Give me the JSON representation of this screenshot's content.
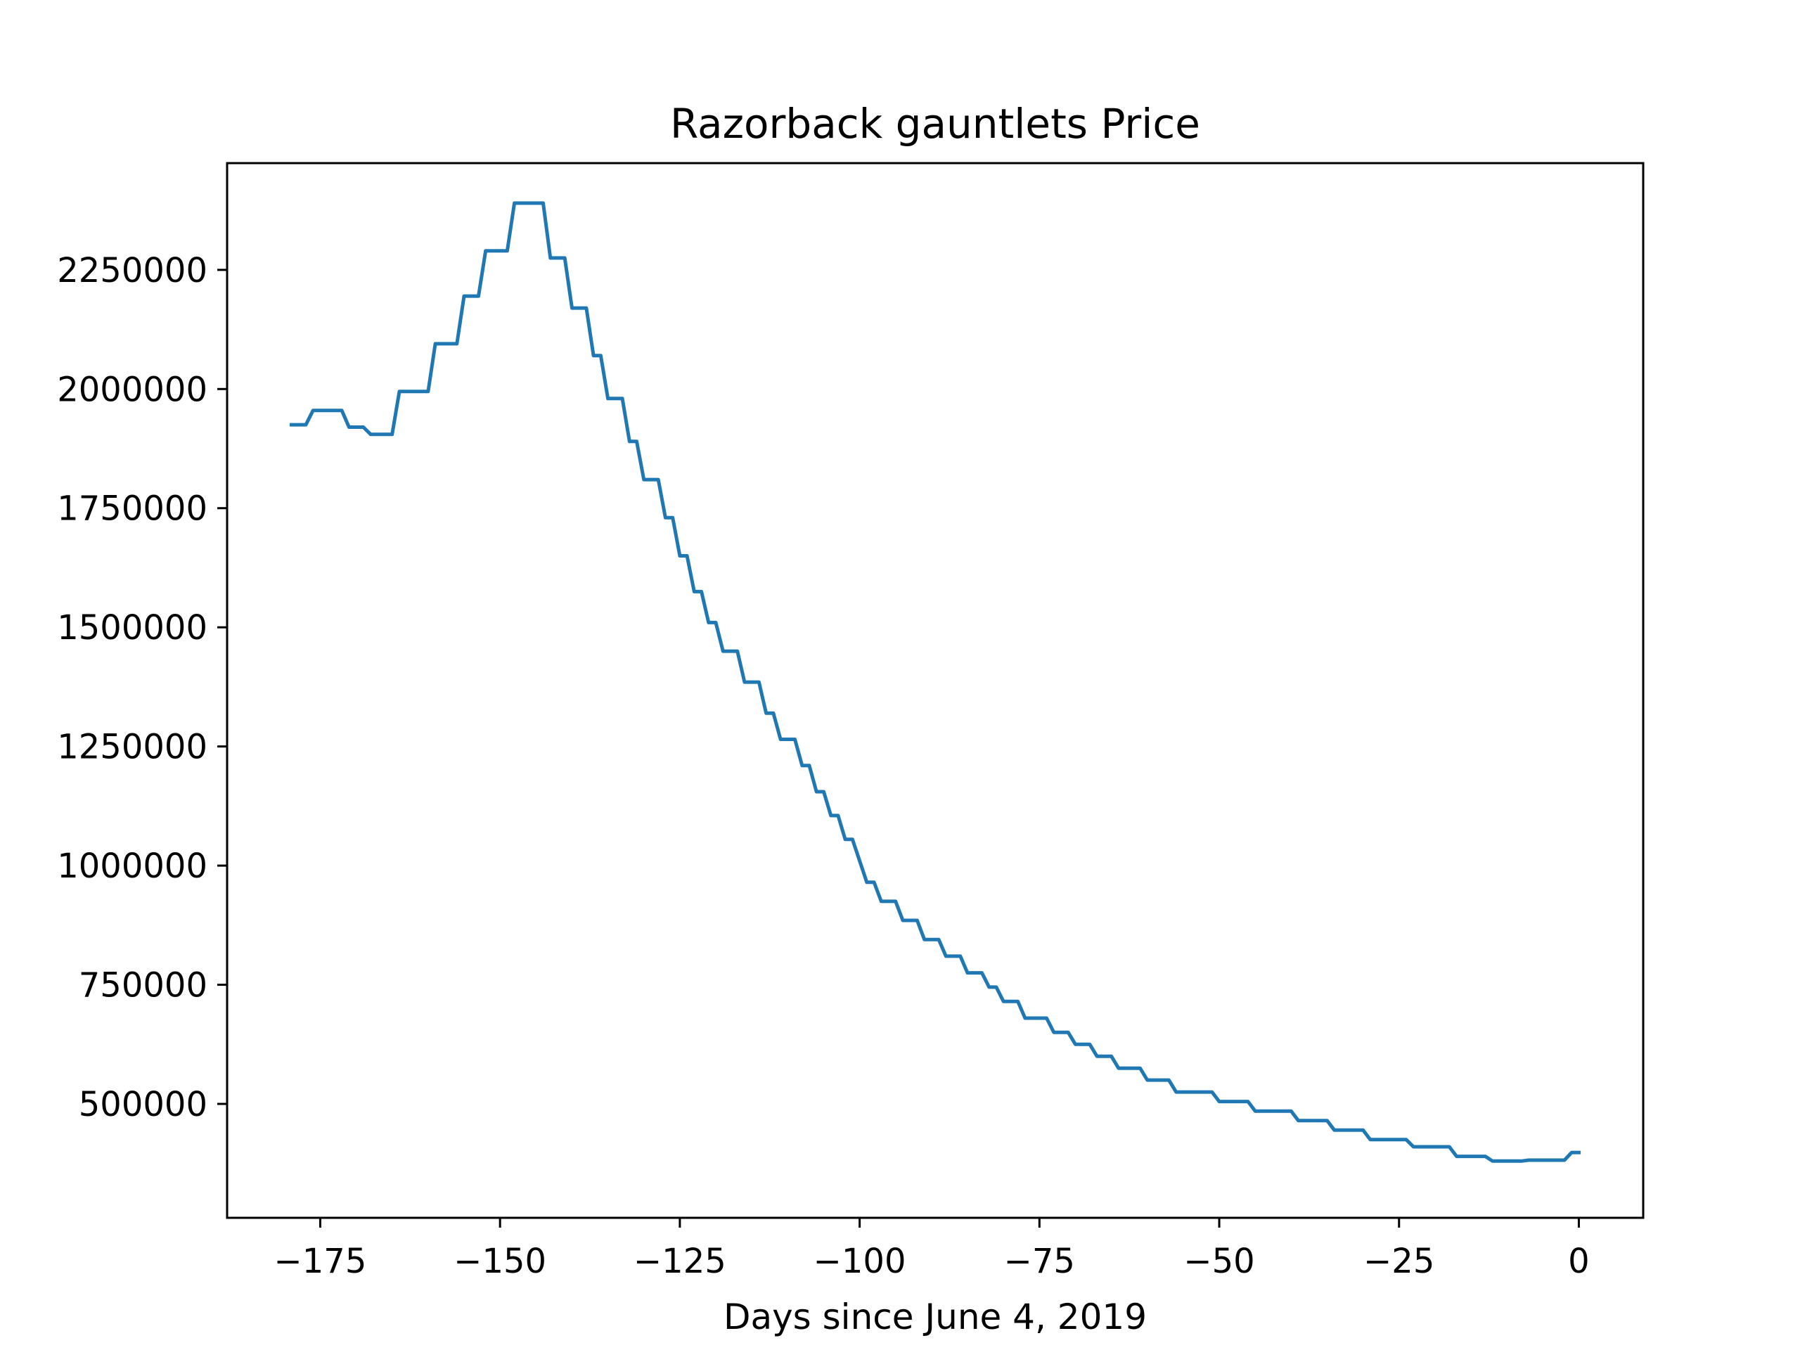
{
  "chart_data": {
    "type": "line",
    "title": "Razorback gauntlets Price",
    "xlabel": "Days since June 4, 2019",
    "ylabel": "",
    "xlim": [
      -187.95,
      8.95
    ],
    "ylim": [
      261000,
      2474000
    ],
    "xticks": [
      -175,
      -150,
      -125,
      -100,
      -75,
      -50,
      -25,
      0
    ],
    "xtick_labels": [
      "−175",
      "−150",
      "−125",
      "−100",
      "−75",
      "−50",
      "−25",
      "0"
    ],
    "yticks": [
      500000,
      750000,
      1000000,
      1250000,
      1500000,
      1750000,
      2000000,
      2250000
    ],
    "ytick_labels": [
      "500000",
      "750000",
      "1000000",
      "1250000",
      "1500000",
      "1750000",
      "2000000",
      "2250000"
    ],
    "grid": false,
    "colors": {
      "line": "#1f77b4",
      "axes": "#000000",
      "background": "#ffffff"
    },
    "series": [
      {
        "x": [
          -179,
          -177,
          -176,
          -175,
          -174,
          -173,
          -172,
          -171,
          -170,
          -169,
          -168,
          -167,
          -166,
          -165,
          -164,
          -163,
          -162,
          -161,
          -160,
          -159,
          -158,
          -157,
          -156,
          -155,
          -154,
          -153,
          -152,
          -151,
          -150,
          -149,
          -148,
          -147,
          -146,
          -145,
          -144,
          -143,
          -142,
          -141,
          -140,
          -139,
          -138,
          -137,
          -136,
          -135,
          -134,
          -133,
          -132,
          -131,
          -130,
          -129,
          -128,
          -127,
          -126,
          -125,
          -124,
          -123,
          -122,
          -121,
          -120,
          -119,
          -118,
          -117,
          -116,
          -115,
          -114,
          -113,
          -112,
          -111,
          -110,
          -109,
          -108,
          -107,
          -106,
          -105,
          -104,
          -103,
          -102,
          -101,
          -100,
          -99,
          -98,
          -97,
          -96,
          -95,
          -94,
          -93,
          -92,
          -91,
          -90,
          -89,
          -88,
          -87,
          -86,
          -85,
          -84,
          -83,
          -82,
          -81,
          -80,
          -79,
          -78,
          -77,
          -76,
          -75,
          -74,
          -73,
          -72,
          -71,
          -70,
          -69,
          -68,
          -67,
          -66,
          -65,
          -64,
          -63,
          -62,
          -61,
          -60,
          -59,
          -58,
          -57,
          -56,
          -55,
          -54,
          -53,
          -52,
          -51,
          -50,
          -49,
          -48,
          -47,
          -46,
          -45,
          -44,
          -43,
          -42,
          -41,
          -40,
          -39,
          -38,
          -37,
          -36,
          -35,
          -34,
          -33,
          -32,
          -31,
          -30,
          -29,
          -28,
          -27,
          -26,
          -25,
          -24,
          -23,
          -22,
          -21,
          -20,
          -19,
          -18,
          -17,
          -16,
          -15,
          -14,
          -13,
          -12,
          -11,
          -10,
          -9,
          -8,
          -7,
          -6,
          -5,
          -4,
          -3,
          -2,
          -1,
          0
        ],
        "y": [
          1925000,
          1925000,
          1955000,
          1955000,
          1955000,
          1955000,
          1955000,
          1920000,
          1920000,
          1920000,
          1905000,
          1905000,
          1905000,
          1905000,
          1995000,
          1995000,
          1995000,
          1995000,
          1995000,
          2095000,
          2095000,
          2095000,
          2095000,
          2195000,
          2195000,
          2195000,
          2290000,
          2290000,
          2290000,
          2290000,
          2390000,
          2390000,
          2390000,
          2390000,
          2390000,
          2275000,
          2275000,
          2275000,
          2170000,
          2170000,
          2170000,
          2070000,
          2070000,
          1980000,
          1980000,
          1980000,
          1890000,
          1890000,
          1810000,
          1810000,
          1810000,
          1730000,
          1730000,
          1650000,
          1650000,
          1575000,
          1575000,
          1510000,
          1510000,
          1450000,
          1450000,
          1450000,
          1385000,
          1385000,
          1385000,
          1320000,
          1320000,
          1265000,
          1265000,
          1265000,
          1210000,
          1210000,
          1155000,
          1155000,
          1105000,
          1105000,
          1055000,
          1055000,
          1010000,
          965000,
          965000,
          925000,
          925000,
          925000,
          885000,
          885000,
          885000,
          845000,
          845000,
          845000,
          810000,
          810000,
          810000,
          775000,
          775000,
          775000,
          745000,
          745000,
          715000,
          715000,
          715000,
          680000,
          680000,
          680000,
          680000,
          650000,
          650000,
          650000,
          625000,
          625000,
          625000,
          600000,
          600000,
          600000,
          575000,
          575000,
          575000,
          575000,
          550000,
          550000,
          550000,
          550000,
          525000,
          525000,
          525000,
          525000,
          525000,
          525000,
          505000,
          505000,
          505000,
          505000,
          505000,
          485000,
          485000,
          485000,
          485000,
          485000,
          485000,
          465000,
          465000,
          465000,
          465000,
          465000,
          445000,
          445000,
          445000,
          445000,
          445000,
          425000,
          425000,
          425000,
          425000,
          425000,
          425000,
          410000,
          410000,
          410000,
          410000,
          410000,
          410000,
          390000,
          390000,
          390000,
          390000,
          390000,
          380000,
          380000,
          380000,
          380000,
          380000,
          382000,
          382000,
          382000,
          382000,
          382000,
          382000,
          398000,
          398000
        ]
      }
    ]
  }
}
